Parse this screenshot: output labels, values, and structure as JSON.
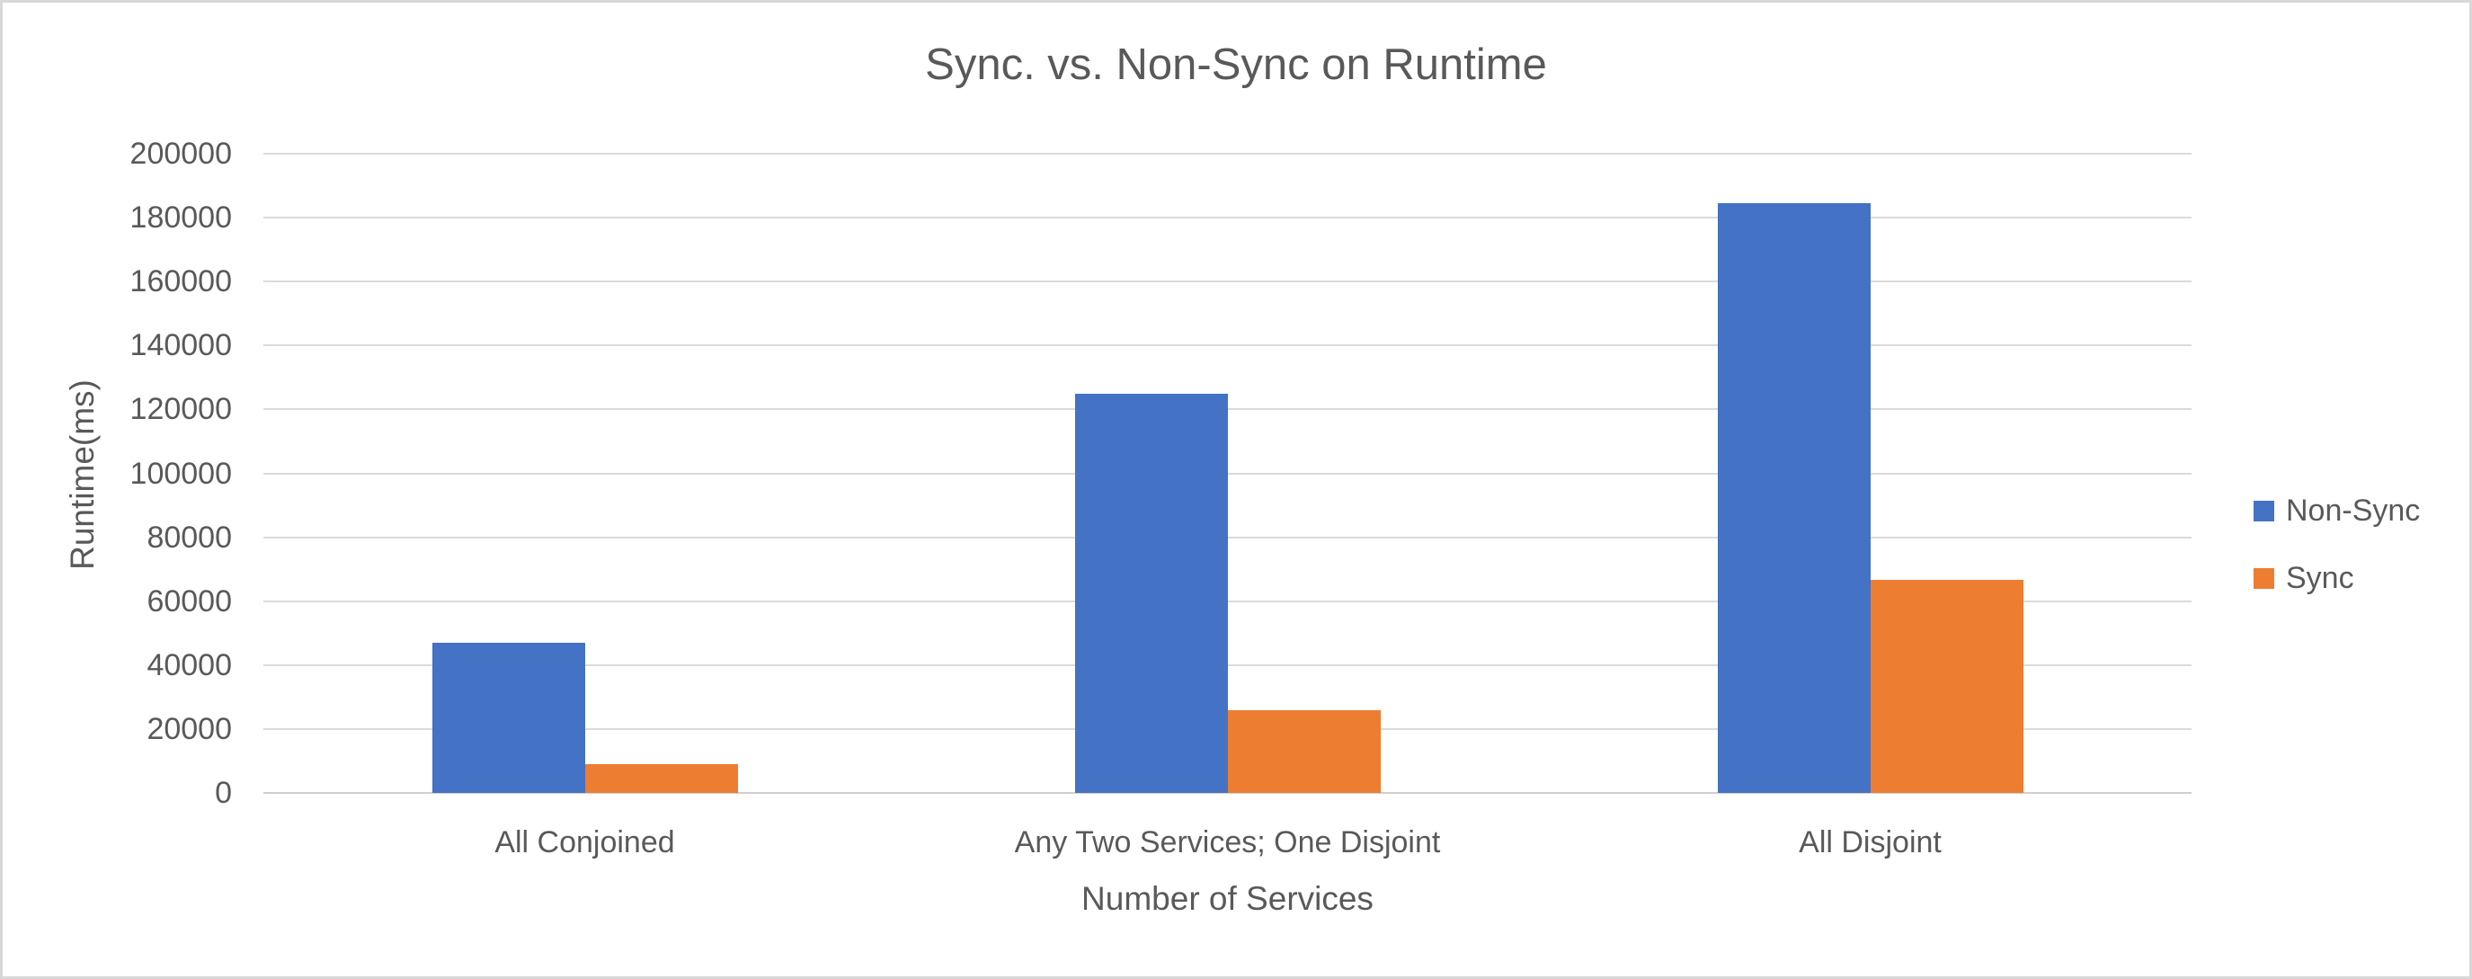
{
  "chart_data": {
    "type": "bar",
    "title": "Sync. vs. Non-Sync on Runtime",
    "xlabel": "Number of Services",
    "ylabel": "Runtime(ms)",
    "categories": [
      "All Conjoined",
      "Any Two Services; One Disjoint",
      "All Disjoint"
    ],
    "series": [
      {
        "name": "Non-Sync",
        "color": "#4472C4",
        "values": [
          47000,
          125000,
          184500
        ]
      },
      {
        "name": "Sync",
        "color": "#ED7D31",
        "values": [
          9000,
          26000,
          66600
        ]
      }
    ],
    "ylim": [
      0,
      200000
    ],
    "yticks": [
      0,
      20000,
      40000,
      60000,
      80000,
      100000,
      120000,
      140000,
      160000,
      180000,
      200000
    ],
    "grid": "horizontal",
    "legend_position": "right",
    "colors": {
      "background": "#FFFFFF",
      "text": "#595959",
      "gridline": "#DBDBDB",
      "axis_line": "#CFCFCF",
      "border": "#D8D8D8"
    }
  }
}
